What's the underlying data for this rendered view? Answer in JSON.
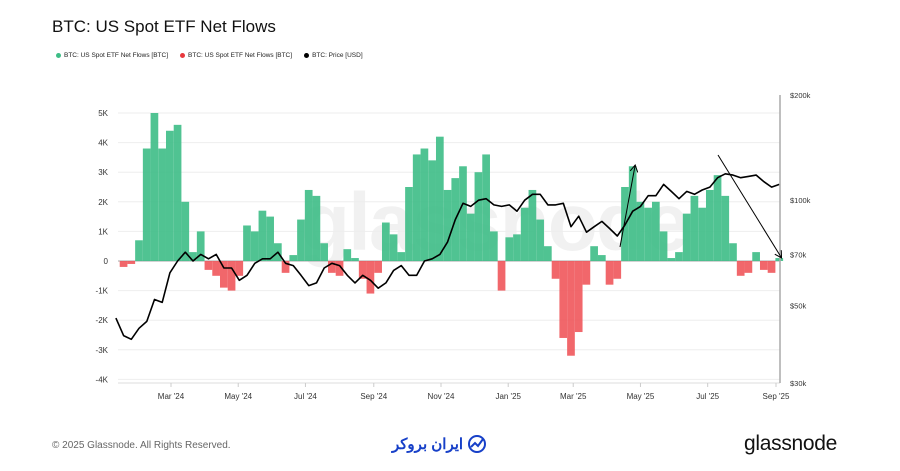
{
  "header": {
    "title": "BTC: US Spot ETF Net Flows"
  },
  "legend": [
    {
      "label": "BTC: US Spot ETF Net Flows [BTC]",
      "color": "#3dbd86"
    },
    {
      "label": "BTC: US Spot ETF Net Flows [BTC]",
      "color": "#e8383d"
    },
    {
      "label": "BTC: Price [USD]",
      "color": "#000000"
    }
  ],
  "watermark": "glassnode",
  "footer": {
    "copyright": "© 2025 Glassnode. All Rights Reserved.",
    "broker_logo": "ایران بروکر",
    "brand_logo": "glassnode"
  },
  "chart_data": {
    "type": "bar+line",
    "title": "BTC: US Spot ETF Net Flows",
    "left_axis": {
      "ticks": [
        "5K",
        "4K",
        "3K",
        "2K",
        "1K",
        "0",
        "-1K",
        "-2K",
        "-3K",
        "-4K"
      ],
      "tick_values": [
        5000,
        4000,
        3000,
        2000,
        1000,
        0,
        -1000,
        -2000,
        -3000,
        -4000
      ],
      "range": [
        -4000,
        5000
      ]
    },
    "right_axis": {
      "scale": "log",
      "ticks": [
        "$200k",
        "$100k",
        "$70k",
        "$50k",
        "$30k"
      ],
      "tick_values": [
        200000,
        100000,
        70000,
        50000,
        30000
      ],
      "range": [
        30000,
        200000
      ]
    },
    "x_axis": {
      "ticks": [
        "Mar '24",
        "May '24",
        "Jul '24",
        "Sep '24",
        "Nov '24",
        "Jan '25",
        "Mar '25",
        "May '25",
        "Jul '25",
        "Sep '25"
      ],
      "tick_dates": [
        "2024-03-01",
        "2024-05-01",
        "2024-07-01",
        "2024-09-01",
        "2024-11-01",
        "2025-01-01",
        "2025-03-01",
        "2025-05-01",
        "2025-07-01",
        "2025-09-01"
      ],
      "range": [
        "2024-01-11",
        "2025-09-05"
      ]
    },
    "grid": true,
    "colors": {
      "inflow": "#3dbd86",
      "outflow": "#f0575b",
      "price": "#000000"
    },
    "x": [
      "2024-01-11",
      "2024-01-18",
      "2024-01-25",
      "2024-02-01",
      "2024-02-08",
      "2024-02-15",
      "2024-02-22",
      "2024-02-29",
      "2024-03-07",
      "2024-03-14",
      "2024-03-21",
      "2024-03-28",
      "2024-04-04",
      "2024-04-11",
      "2024-04-18",
      "2024-04-25",
      "2024-05-02",
      "2024-05-09",
      "2024-05-16",
      "2024-05-23",
      "2024-05-30",
      "2024-06-06",
      "2024-06-13",
      "2024-06-20",
      "2024-06-27",
      "2024-07-04",
      "2024-07-11",
      "2024-07-18",
      "2024-07-25",
      "2024-08-01",
      "2024-08-08",
      "2024-08-15",
      "2024-08-22",
      "2024-08-29",
      "2024-09-05",
      "2024-09-12",
      "2024-09-19",
      "2024-09-26",
      "2024-10-03",
      "2024-10-10",
      "2024-10-17",
      "2024-10-24",
      "2024-10-31",
      "2024-11-07",
      "2024-11-14",
      "2024-11-21",
      "2024-11-28",
      "2024-12-05",
      "2024-12-12",
      "2024-12-19",
      "2024-12-26",
      "2025-01-02",
      "2025-01-09",
      "2025-01-16",
      "2025-01-23",
      "2025-01-30",
      "2025-02-06",
      "2025-02-13",
      "2025-02-20",
      "2025-02-27",
      "2025-03-06",
      "2025-03-13",
      "2025-03-20",
      "2025-03-27",
      "2025-04-03",
      "2025-04-10",
      "2025-04-17",
      "2025-04-24",
      "2025-05-01",
      "2025-05-08",
      "2025-05-15",
      "2025-05-22",
      "2025-05-29",
      "2025-06-05",
      "2025-06-12",
      "2025-06-19",
      "2025-06-26",
      "2025-07-03",
      "2025-07-10",
      "2025-07-17",
      "2025-07-24",
      "2025-07-31",
      "2025-08-07",
      "2025-08-14",
      "2025-08-21",
      "2025-08-28",
      "2025-09-04"
    ],
    "series": [
      {
        "name": "BTC: US Spot ETF Net Flows [BTC]",
        "values": [
          0,
          -200,
          -100,
          700,
          3800,
          5000,
          3800,
          4400,
          4600,
          2000,
          300,
          1000,
          -300,
          -500,
          -900,
          -1000,
          -500,
          1200,
          1000,
          1700,
          1500,
          600,
          -400,
          200,
          1400,
          2400,
          2200,
          600,
          -400,
          -500,
          400,
          100,
          -600,
          -1100,
          -400,
          1300,
          900,
          300,
          2500,
          3600,
          3800,
          3400,
          4200,
          2400,
          2800,
          3200,
          1600,
          3000,
          3600,
          1000,
          -1000,
          800,
          900,
          1800,
          2400,
          1400,
          500,
          -600,
          -2600,
          -3200,
          -2400,
          -800,
          500,
          200,
          -800,
          -600,
          2500,
          3200,
          2000,
          1800,
          2000,
          1000,
          100,
          300,
          1600,
          2200,
          1800,
          2400,
          2900,
          2200,
          600,
          -500,
          -400,
          300,
          -300,
          -400,
          100
        ]
      },
      {
        "name": "BTC: Price [USD]",
        "values": [
          46000,
          41000,
          40000,
          43000,
          45000,
          52000,
          51000,
          62000,
          67000,
          71000,
          67000,
          70000,
          68000,
          70000,
          64000,
          64000,
          59000,
          61000,
          66000,
          68000,
          68000,
          71000,
          66000,
          65000,
          61000,
          57000,
          58000,
          64000,
          66000,
          65000,
          61000,
          58000,
          61000,
          59000,
          56000,
          58000,
          63000,
          65000,
          61000,
          61000,
          67000,
          68000,
          70000,
          76000,
          88000,
          98000,
          96000,
          100000,
          101000,
          97000,
          96000,
          97000,
          93000,
          100000,
          104000,
          104000,
          97000,
          97000,
          98000,
          84000,
          90000,
          81000,
          84000,
          87000,
          83000,
          79000,
          85000,
          93000,
          96000,
          103000,
          103000,
          111000,
          106000,
          101000,
          106000,
          104000,
          107000,
          109000,
          116000,
          119000,
          118000,
          116000,
          117000,
          118000,
          113000,
          109000,
          111000
        ]
      }
    ]
  }
}
